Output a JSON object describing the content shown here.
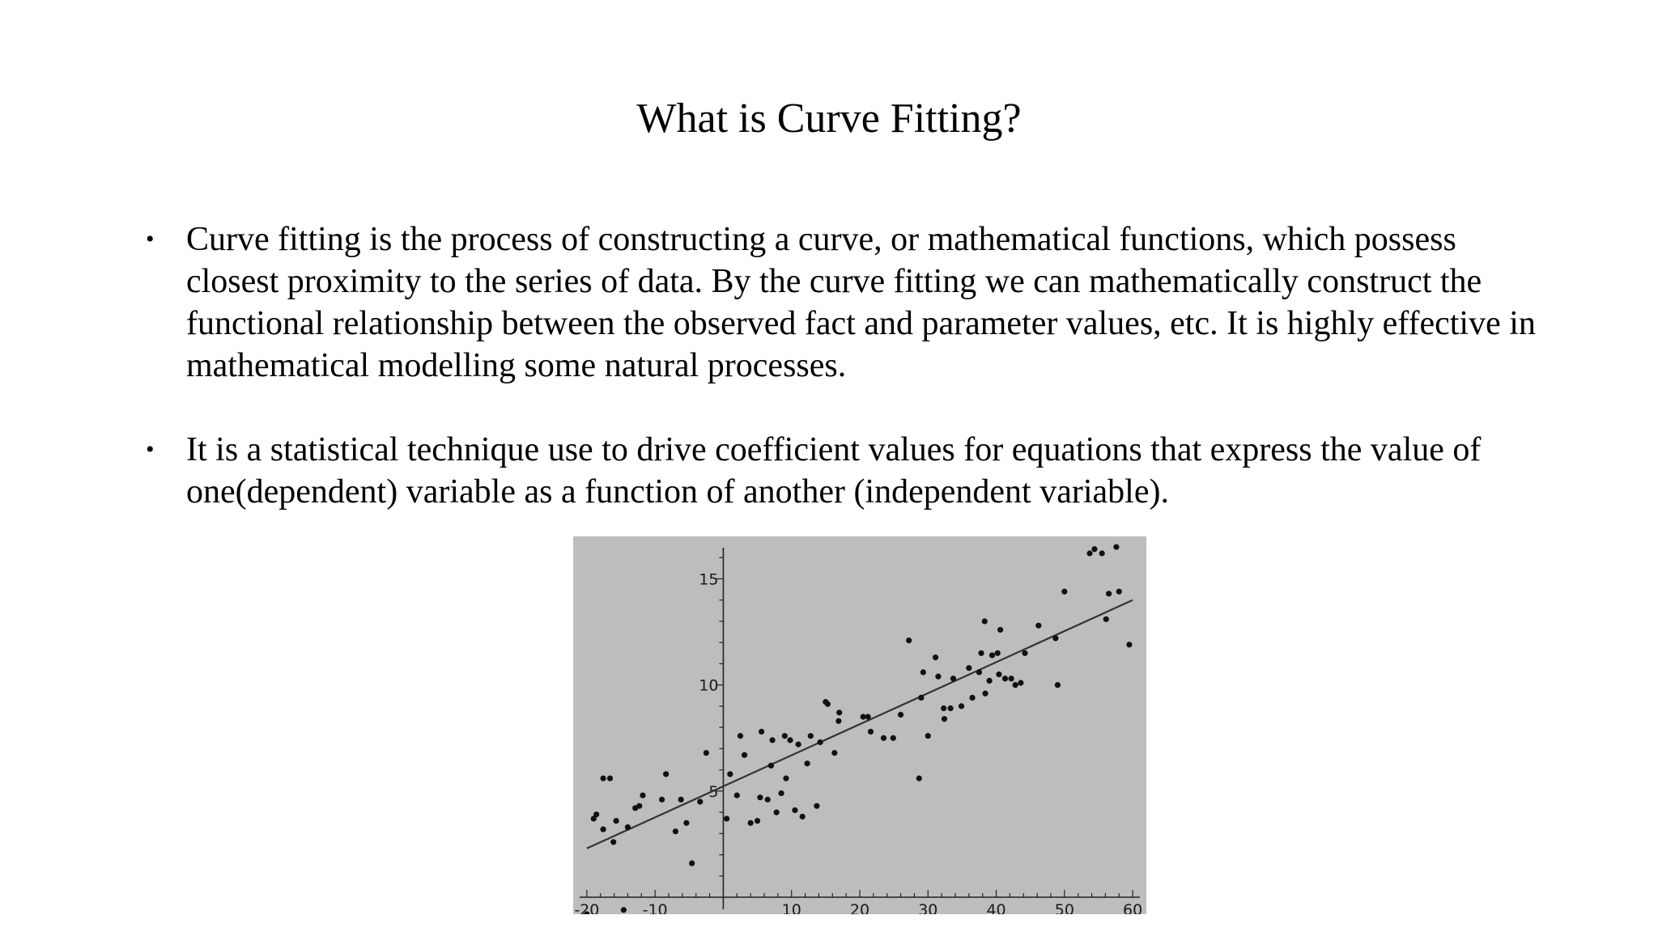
{
  "slide": {
    "title": "What is Curve Fitting?",
    "bullet_marker": "•",
    "bullets": [
      "Curve fitting is the process of constructing a curve, or mathematical functions, which possess closest proximity to the series of data. By the curve fitting we can mathematically construct the functional relationship between the observed fact and parameter values, etc. It is highly effective in mathematical modelling some natural processes.",
      "It is a statistical technique use to drive coefficient values for equations that express the value of one(dependent) variable as a function of another (independent variable)."
    ]
  },
  "chart_data": {
    "type": "scatter",
    "title": "",
    "xlabel": "",
    "ylabel": "",
    "xlim": [
      -22,
      62
    ],
    "ylim": [
      -0.8,
      17
    ],
    "x_ticks": [
      -20,
      -10,
      10,
      20,
      30,
      40,
      50,
      60
    ],
    "x_tick_labels": [
      "-20",
      "-10",
      "10",
      "20",
      "30",
      "40",
      "50",
      "60"
    ],
    "y_ticks": [
      5,
      10,
      15
    ],
    "y_tick_labels": [
      "5",
      "10",
      "15"
    ],
    "grid": false,
    "background": "#bdbdbd",
    "point_color": "#111111",
    "line_color": "#333333",
    "fit_line": {
      "x": [
        -20,
        60
      ],
      "y": [
        2.3,
        14.0
      ]
    },
    "points": [
      [
        -19,
        3.7
      ],
      [
        -18.6,
        3.9
      ],
      [
        -17.6,
        3.2
      ],
      [
        -17.6,
        5.6
      ],
      [
        -16.6,
        5.6
      ],
      [
        -16.1,
        2.6
      ],
      [
        -15.7,
        3.6
      ],
      [
        -14,
        3.3
      ],
      [
        -12.9,
        4.2
      ],
      [
        -12.3,
        4.3
      ],
      [
        -11.8,
        4.8
      ],
      [
        -9,
        4.6
      ],
      [
        -8.4,
        5.8
      ],
      [
        -7,
        3.1
      ],
      [
        -6.2,
        4.6
      ],
      [
        -5.4,
        3.5
      ],
      [
        -4.6,
        1.6
      ],
      [
        -3.4,
        4.5
      ],
      [
        -2.5,
        6.8
      ],
      [
        0.5,
        3.7
      ],
      [
        1,
        5.8
      ],
      [
        2,
        4.8
      ],
      [
        2.5,
        7.6
      ],
      [
        3.1,
        6.7
      ],
      [
        4,
        3.5
      ],
      [
        5,
        3.6
      ],
      [
        5.4,
        4.7
      ],
      [
        5.6,
        7.8
      ],
      [
        6.5,
        4.6
      ],
      [
        7,
        6.2
      ],
      [
        7.2,
        7.4
      ],
      [
        7.8,
        4.0
      ],
      [
        8.5,
        4.9
      ],
      [
        9,
        7.6
      ],
      [
        9.2,
        5.6
      ],
      [
        9.8,
        7.4
      ],
      [
        10.5,
        4.1
      ],
      [
        11,
        7.2
      ],
      [
        11.6,
        3.8
      ],
      [
        12.3,
        6.3
      ],
      [
        12.8,
        7.6
      ],
      [
        13.7,
        4.3
      ],
      [
        14.2,
        7.3
      ],
      [
        15,
        9.2
      ],
      [
        15.3,
        9.1
      ],
      [
        16.3,
        6.8
      ],
      [
        16.9,
        8.3
      ],
      [
        17,
        8.7
      ],
      [
        20.5,
        8.5
      ],
      [
        21.2,
        8.5
      ],
      [
        21.6,
        7.8
      ],
      [
        23.5,
        7.5
      ],
      [
        24.9,
        7.5
      ],
      [
        26,
        8.6
      ],
      [
        27.2,
        12.1
      ],
      [
        28.7,
        5.6
      ],
      [
        29,
        9.4
      ],
      [
        29.3,
        10.6
      ],
      [
        30,
        7.6
      ],
      [
        31.1,
        11.3
      ],
      [
        31.5,
        10.4
      ],
      [
        32.3,
        8.9
      ],
      [
        32.4,
        8.4
      ],
      [
        33.3,
        8.9
      ],
      [
        33.7,
        10.3
      ],
      [
        34.9,
        9.0
      ],
      [
        36,
        10.8
      ],
      [
        36.5,
        9.4
      ],
      [
        37.5,
        10.6
      ],
      [
        37.8,
        11.5
      ],
      [
        38.3,
        13.0
      ],
      [
        38.4,
        9.6
      ],
      [
        39,
        10.2
      ],
      [
        39.4,
        11.4
      ],
      [
        40.2,
        11.5
      ],
      [
        40.4,
        10.5
      ],
      [
        40.6,
        12.6
      ],
      [
        41.3,
        10.3
      ],
      [
        42.2,
        10.3
      ],
      [
        42.8,
        10.0
      ],
      [
        43.6,
        10.1
      ],
      [
        44.2,
        11.5
      ],
      [
        46.2,
        12.8
      ],
      [
        48.7,
        12.2
      ],
      [
        49,
        10.0
      ],
      [
        50,
        14.4
      ],
      [
        53.7,
        16.2
      ],
      [
        54.4,
        16.4
      ],
      [
        55.5,
        16.2
      ],
      [
        56.1,
        13.1
      ],
      [
        56.5,
        14.3
      ],
      [
        57.6,
        16.5
      ],
      [
        58,
        14.4
      ],
      [
        59.5,
        11.9
      ],
      [
        -14.6,
        -0.6
      ],
      [
        -20,
        -0.8
      ]
    ]
  }
}
